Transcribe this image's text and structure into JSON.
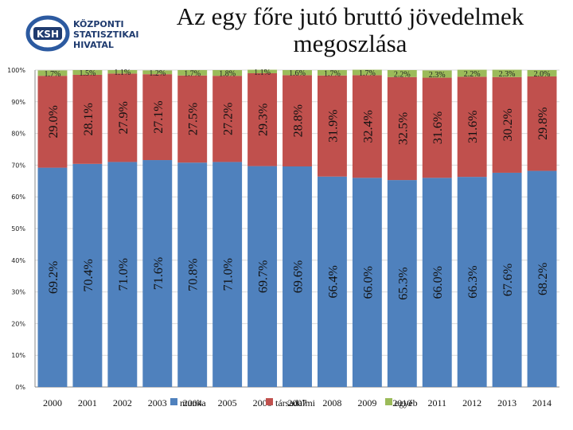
{
  "logo": {
    "abbr": "KSH",
    "line1": "KÖZPONTI",
    "line2": "STATISZTIKAI",
    "line3": "HIVATAL"
  },
  "chart_data": {
    "type": "bar",
    "stacked": true,
    "title_line1": "Az egy főre jutó bruttó jövedelmek",
    "title_line2": "megoszlása",
    "categories": [
      "2000",
      "2001",
      "2002",
      "2003",
      "2004",
      "2005",
      "2006",
      "2007",
      "2008",
      "2009",
      "2010",
      "2011",
      "2012",
      "2013",
      "2014"
    ],
    "series": [
      {
        "name": "munka",
        "color": "#4f81bd",
        "values": [
          69.2,
          70.4,
          71.0,
          71.6,
          70.8,
          71.0,
          69.7,
          69.6,
          66.4,
          66.0,
          65.3,
          66.0,
          66.3,
          67.6,
          68.2
        ],
        "labels": [
          "69.2%",
          "70.4%",
          "71.0%",
          "71.6%",
          "70.8%",
          "71.0%",
          "69.7%",
          "69.6%",
          "66.4%",
          "66.0%",
          "65.3%",
          "66.0%",
          "66.3%",
          "67.6%",
          "68.2%"
        ]
      },
      {
        "name": "társadalmi",
        "color": "#c0504d",
        "values": [
          29.0,
          28.1,
          27.9,
          27.1,
          27.5,
          27.2,
          29.3,
          28.8,
          31.9,
          32.4,
          32.5,
          31.6,
          31.6,
          30.2,
          29.8
        ],
        "labels": [
          "29.0%",
          "28.1%",
          "27.9%",
          "27.1%",
          "27.5%",
          "27.2%",
          "29.3%",
          "28.8%",
          "31.9%",
          "32.4%",
          "32.5%",
          "31.6%",
          "31.6%",
          "30.2%",
          "29.8%"
        ]
      },
      {
        "name": "egyéb",
        "color": "#9bbb59",
        "values": [
          1.7,
          1.5,
          1.1,
          1.2,
          1.7,
          1.8,
          1.1,
          1.6,
          1.7,
          1.7,
          2.2,
          2.3,
          2.2,
          2.3,
          2.0
        ],
        "labels": [
          "1.7%",
          "1.5%",
          "1.1%",
          "1.2%",
          "1.7%",
          "1.8%",
          "1.1%",
          "1.6%",
          "1.7%",
          "1.7%",
          "2.2%",
          "2.3%",
          "2.2%",
          "2.3%",
          "2.0%"
        ]
      }
    ],
    "yticks": [
      "0%",
      "10%",
      "20%",
      "30%",
      "40%",
      "50%",
      "60%",
      "70%",
      "80%",
      "90%",
      "100%"
    ],
    "ylim": [
      0,
      100
    ],
    "legend_position": "bottom",
    "grid": true
  }
}
